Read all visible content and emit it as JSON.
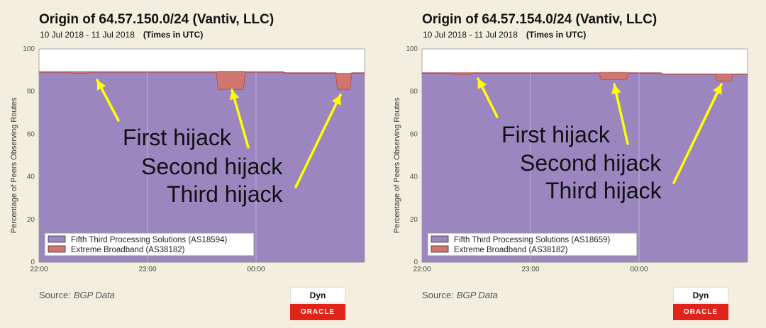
{
  "panels": [
    {
      "title": "Origin of 64.57.150.0/24 (Vantiv, LLC)",
      "date_range": "10 Jul 2018 - 11 Jul 2018",
      "timezone_note": "(Times in UTC)",
      "source_label": "Source:",
      "source_value": "BGP Data",
      "logo_top": "Dyn",
      "logo_bottom": "ORACLE",
      "annotations": [
        "First hijack",
        "Second hijack",
        "Third hijack"
      ],
      "chart_data": {
        "type": "area",
        "stacked": true,
        "ylabel": "Percentage of Peers Observing Routes",
        "xlabel": "",
        "x_ticks": [
          "22:00",
          "23:00",
          "00:00"
        ],
        "x_tick_minutes": [
          0,
          60,
          120
        ],
        "x_range_minutes": [
          0,
          180
        ],
        "ylim": [
          0,
          100
        ],
        "y_ticks": [
          0,
          20,
          40,
          60,
          80,
          100
        ],
        "grid": true,
        "legend_position": "bottom-left",
        "series": [
          {
            "name": "Fifth Third Processing Solutions (AS18594)",
            "color": "#9b86c0",
            "x": [
              0,
              17,
              18,
              27,
              28,
              98,
              99,
              113,
              114,
              135,
              136,
              164,
              165,
              172,
              173,
              180
            ],
            "values": [
              89,
              89,
              88.5,
              88.5,
              89,
              89,
              81,
              81,
              89,
              89,
              88.5,
              88.5,
              81,
              81,
              88.5,
              88.5
            ]
          },
          {
            "name": "Extreme Broadband (AS38182)",
            "color": "#d07570",
            "x": [
              0,
              17,
              18,
              27,
              28,
              98,
              99,
              113,
              114,
              135,
              136,
              164,
              165,
              172,
              173,
              180
            ],
            "values": [
              0.3,
              0.3,
              0.8,
              0.8,
              0.3,
              0.3,
              8.5,
              8.5,
              0.3,
              0.3,
              0.3,
              0.3,
              7.5,
              7.5,
              0.3,
              0.3
            ]
          }
        ]
      }
    },
    {
      "title": "Origin of 64.57.154.0/24 (Vantiv, LLC)",
      "date_range": "10 Jul 2018 - 11 Jul 2018",
      "timezone_note": "(Times in UTC)",
      "source_label": "Source:",
      "source_value": "BGP Data",
      "logo_top": "Dyn",
      "logo_bottom": "ORACLE",
      "annotations": [
        "First hijack",
        "Second hijack",
        "Third hijack"
      ],
      "chart_data": {
        "type": "area",
        "stacked": true,
        "ylabel": "Percentage of Peers Observing Routes",
        "xlabel": "",
        "x_ticks": [
          "22:00",
          "23:00",
          "00:00"
        ],
        "x_tick_minutes": [
          0,
          60,
          120
        ],
        "x_range_minutes": [
          0,
          180
        ],
        "ylim": [
          0,
          100
        ],
        "y_ticks": [
          0,
          20,
          40,
          60,
          80,
          100
        ],
        "grid": true,
        "legend_position": "bottom-left",
        "series": [
          {
            "name": "Fifth Third Processing Solutions (AS18659)",
            "color": "#9b86c0",
            "x": [
              0,
              17,
              18,
              27,
              28,
              98,
              99,
              113,
              114,
              132,
              133,
              162,
              163,
              171,
              172,
              180
            ],
            "values": [
              88.5,
              88.5,
              88,
              88,
              88.5,
              88.5,
              85.5,
              85.5,
              88.5,
              88.5,
              88,
              88,
              85,
              85,
              88,
              88
            ]
          },
          {
            "name": "Extreme Broadband (AS38182)",
            "color": "#d07570",
            "x": [
              0,
              17,
              18,
              27,
              28,
              98,
              99,
              113,
              114,
              132,
              133,
              162,
              163,
              171,
              172,
              180
            ],
            "values": [
              0.3,
              0.3,
              0.8,
              0.8,
              0.3,
              0.3,
              3.5,
              3.5,
              0.3,
              0.3,
              0.3,
              0.3,
              3.3,
              3.3,
              0.3,
              0.3
            ]
          }
        ]
      }
    }
  ]
}
